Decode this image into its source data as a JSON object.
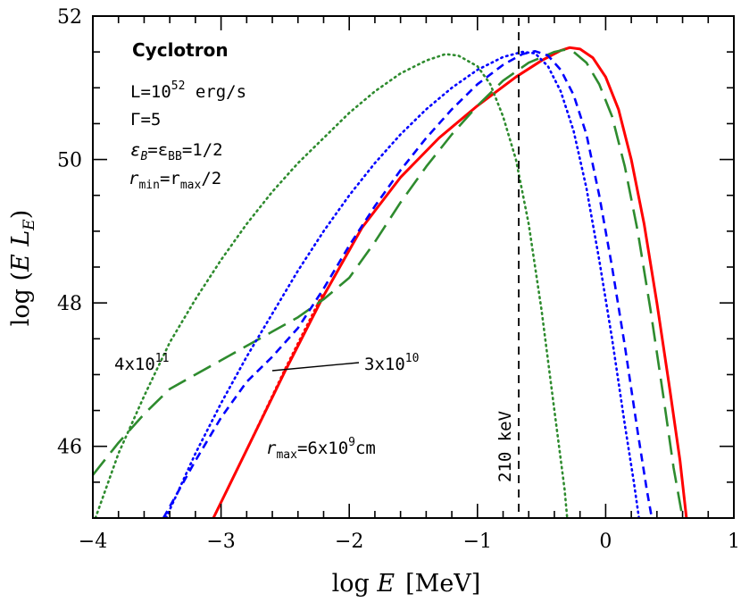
{
  "chart_data": {
    "type": "line",
    "xlabel_prefix": "log ",
    "xlabel_var": "E",
    "xlabel_unit": "[MeV]",
    "ylabel_prefix": "log (",
    "ylabel_var": "E L",
    "ylabel_sub": "E",
    "ylabel_suffix": ")",
    "xlim": [
      -4,
      1
    ],
    "ylim": [
      45,
      52
    ],
    "x_ticks": [
      -4,
      -3,
      -2,
      -1,
      0,
      1
    ],
    "x_tick_labels": [
      "−4",
      "−3",
      "−2",
      "−1",
      "0",
      "1"
    ],
    "y_ticks": [
      46,
      48,
      50,
      52
    ],
    "y_tick_labels": [
      "46",
      "48",
      "50",
      "52"
    ],
    "vline": {
      "x": -0.678,
      "label": "210 keV",
      "color": "#000000"
    },
    "annotations": {
      "title": "Cyclotron",
      "lum_base": "L=10",
      "lum_exp": "52",
      "lum_unit": " erg/s",
      "gamma": "Γ=5",
      "eps_a": "ε",
      "eps_a_sub": "B",
      "eps_eq": "=ε",
      "eps_b_sub": "BB",
      "eps_val": "=1/2",
      "r1": "r",
      "r1_sub": "min",
      "r_eq": "=r",
      "r2_sub": "max",
      "r_tail": "/2",
      "green_label_base": "4x10",
      "green_label_exp": "11",
      "blue_label_base": "3x10",
      "blue_label_exp": "10",
      "red_r": "r",
      "red_r_sub": "max",
      "red_label_base": "=6x10",
      "red_label_exp": "9",
      "red_label_unit": "cm"
    },
    "series": [
      {
        "color": "#ff0000",
        "style": "solid",
        "points": [
          [
            -3.06,
            45.0
          ],
          [
            -2.8,
            45.95
          ],
          [
            -2.5,
            47.05
          ],
          [
            -2.2,
            48.1
          ],
          [
            -1.9,
            49.05
          ],
          [
            -1.6,
            49.75
          ],
          [
            -1.3,
            50.3
          ],
          [
            -1.0,
            50.75
          ],
          [
            -0.7,
            51.15
          ],
          [
            -0.5,
            51.38
          ],
          [
            -0.35,
            51.52
          ],
          [
            -0.28,
            51.56
          ],
          [
            -0.2,
            51.54
          ],
          [
            -0.1,
            51.42
          ],
          [
            0.0,
            51.15
          ],
          [
            0.1,
            50.7
          ],
          [
            0.2,
            50.0
          ],
          [
            0.3,
            49.1
          ],
          [
            0.4,
            48.0
          ],
          [
            0.5,
            46.8
          ],
          [
            0.58,
            45.8
          ],
          [
            0.63,
            45.0
          ]
        ]
      },
      {
        "color": "#ff0000",
        "style": "dotted",
        "points": [
          [
            -3.06,
            45.0
          ],
          [
            -2.8,
            45.95
          ],
          [
            -2.5,
            47.08
          ],
          [
            -2.2,
            48.15
          ]
        ]
      },
      {
        "color": "#2e8b2e",
        "style": "longdash",
        "points": [
          [
            -4.0,
            45.6
          ],
          [
            -3.8,
            46.05
          ],
          [
            -3.6,
            46.45
          ],
          [
            -3.4,
            46.8
          ],
          [
            -3.2,
            47.0
          ],
          [
            -3.0,
            47.2
          ],
          [
            -2.8,
            47.4
          ],
          [
            -2.6,
            47.6
          ],
          [
            -2.4,
            47.8
          ],
          [
            -2.2,
            48.05
          ],
          [
            -2.0,
            48.35
          ],
          [
            -1.8,
            48.85
          ],
          [
            -1.6,
            49.4
          ],
          [
            -1.4,
            49.9
          ],
          [
            -1.2,
            50.35
          ],
          [
            -1.0,
            50.75
          ],
          [
            -0.8,
            51.1
          ],
          [
            -0.6,
            51.35
          ],
          [
            -0.4,
            51.5
          ],
          [
            -0.32,
            51.53
          ],
          [
            -0.25,
            51.5
          ],
          [
            -0.15,
            51.35
          ],
          [
            -0.05,
            51.05
          ],
          [
            0.05,
            50.6
          ],
          [
            0.15,
            49.9
          ],
          [
            0.25,
            49.0
          ],
          [
            0.35,
            47.9
          ],
          [
            0.45,
            46.7
          ],
          [
            0.53,
            45.7
          ],
          [
            0.6,
            45.0
          ]
        ]
      },
      {
        "color": "#2e8b2e",
        "style": "dotted",
        "points": [
          [
            -3.98,
            45.0
          ],
          [
            -3.8,
            45.9
          ],
          [
            -3.6,
            46.7
          ],
          [
            -3.4,
            47.45
          ],
          [
            -3.2,
            48.05
          ],
          [
            -3.0,
            48.6
          ],
          [
            -2.8,
            49.1
          ],
          [
            -2.6,
            49.55
          ],
          [
            -2.4,
            49.95
          ],
          [
            -2.2,
            50.3
          ],
          [
            -2.0,
            50.65
          ],
          [
            -1.8,
            50.95
          ],
          [
            -1.6,
            51.2
          ],
          [
            -1.4,
            51.38
          ],
          [
            -1.25,
            51.47
          ],
          [
            -1.15,
            51.45
          ],
          [
            -1.0,
            51.3
          ],
          [
            -0.9,
            51.05
          ],
          [
            -0.8,
            50.6
          ],
          [
            -0.7,
            50.0
          ],
          [
            -0.6,
            49.1
          ],
          [
            -0.5,
            47.9
          ],
          [
            -0.4,
            46.5
          ],
          [
            -0.32,
            45.4
          ],
          [
            -0.3,
            45.0
          ]
        ]
      },
      {
        "color": "#0000ff",
        "style": "dashed",
        "points": [
          [
            -3.45,
            45.0
          ],
          [
            -3.2,
            45.8
          ],
          [
            -3.0,
            46.4
          ],
          [
            -2.8,
            46.9
          ],
          [
            -2.6,
            47.25
          ],
          [
            -2.4,
            47.65
          ],
          [
            -2.2,
            48.2
          ],
          [
            -2.0,
            48.8
          ],
          [
            -1.8,
            49.35
          ],
          [
            -1.6,
            49.85
          ],
          [
            -1.4,
            50.3
          ],
          [
            -1.2,
            50.7
          ],
          [
            -1.0,
            51.05
          ],
          [
            -0.8,
            51.32
          ],
          [
            -0.65,
            51.47
          ],
          [
            -0.55,
            51.51
          ],
          [
            -0.45,
            51.45
          ],
          [
            -0.35,
            51.25
          ],
          [
            -0.25,
            50.9
          ],
          [
            -0.15,
            50.35
          ],
          [
            -0.05,
            49.5
          ],
          [
            0.05,
            48.5
          ],
          [
            0.15,
            47.4
          ],
          [
            0.25,
            46.2
          ],
          [
            0.32,
            45.4
          ],
          [
            0.36,
            45.0
          ]
        ]
      },
      {
        "color": "#0000ff",
        "style": "dotted",
        "points": [
          [
            -3.43,
            45.0
          ],
          [
            -3.2,
            45.9
          ],
          [
            -3.0,
            46.6
          ],
          [
            -2.8,
            47.25
          ],
          [
            -2.6,
            47.85
          ],
          [
            -2.4,
            48.45
          ],
          [
            -2.2,
            49.0
          ],
          [
            -2.0,
            49.5
          ],
          [
            -1.8,
            49.95
          ],
          [
            -1.6,
            50.35
          ],
          [
            -1.4,
            50.7
          ],
          [
            -1.2,
            51.0
          ],
          [
            -1.0,
            51.25
          ],
          [
            -0.8,
            51.43
          ],
          [
            -0.65,
            51.5
          ],
          [
            -0.55,
            51.48
          ],
          [
            -0.45,
            51.3
          ],
          [
            -0.35,
            50.95
          ],
          [
            -0.25,
            50.4
          ],
          [
            -0.15,
            49.6
          ],
          [
            -0.05,
            48.6
          ],
          [
            0.05,
            47.5
          ],
          [
            0.15,
            46.3
          ],
          [
            0.22,
            45.5
          ],
          [
            0.26,
            45.0
          ]
        ]
      }
    ]
  }
}
